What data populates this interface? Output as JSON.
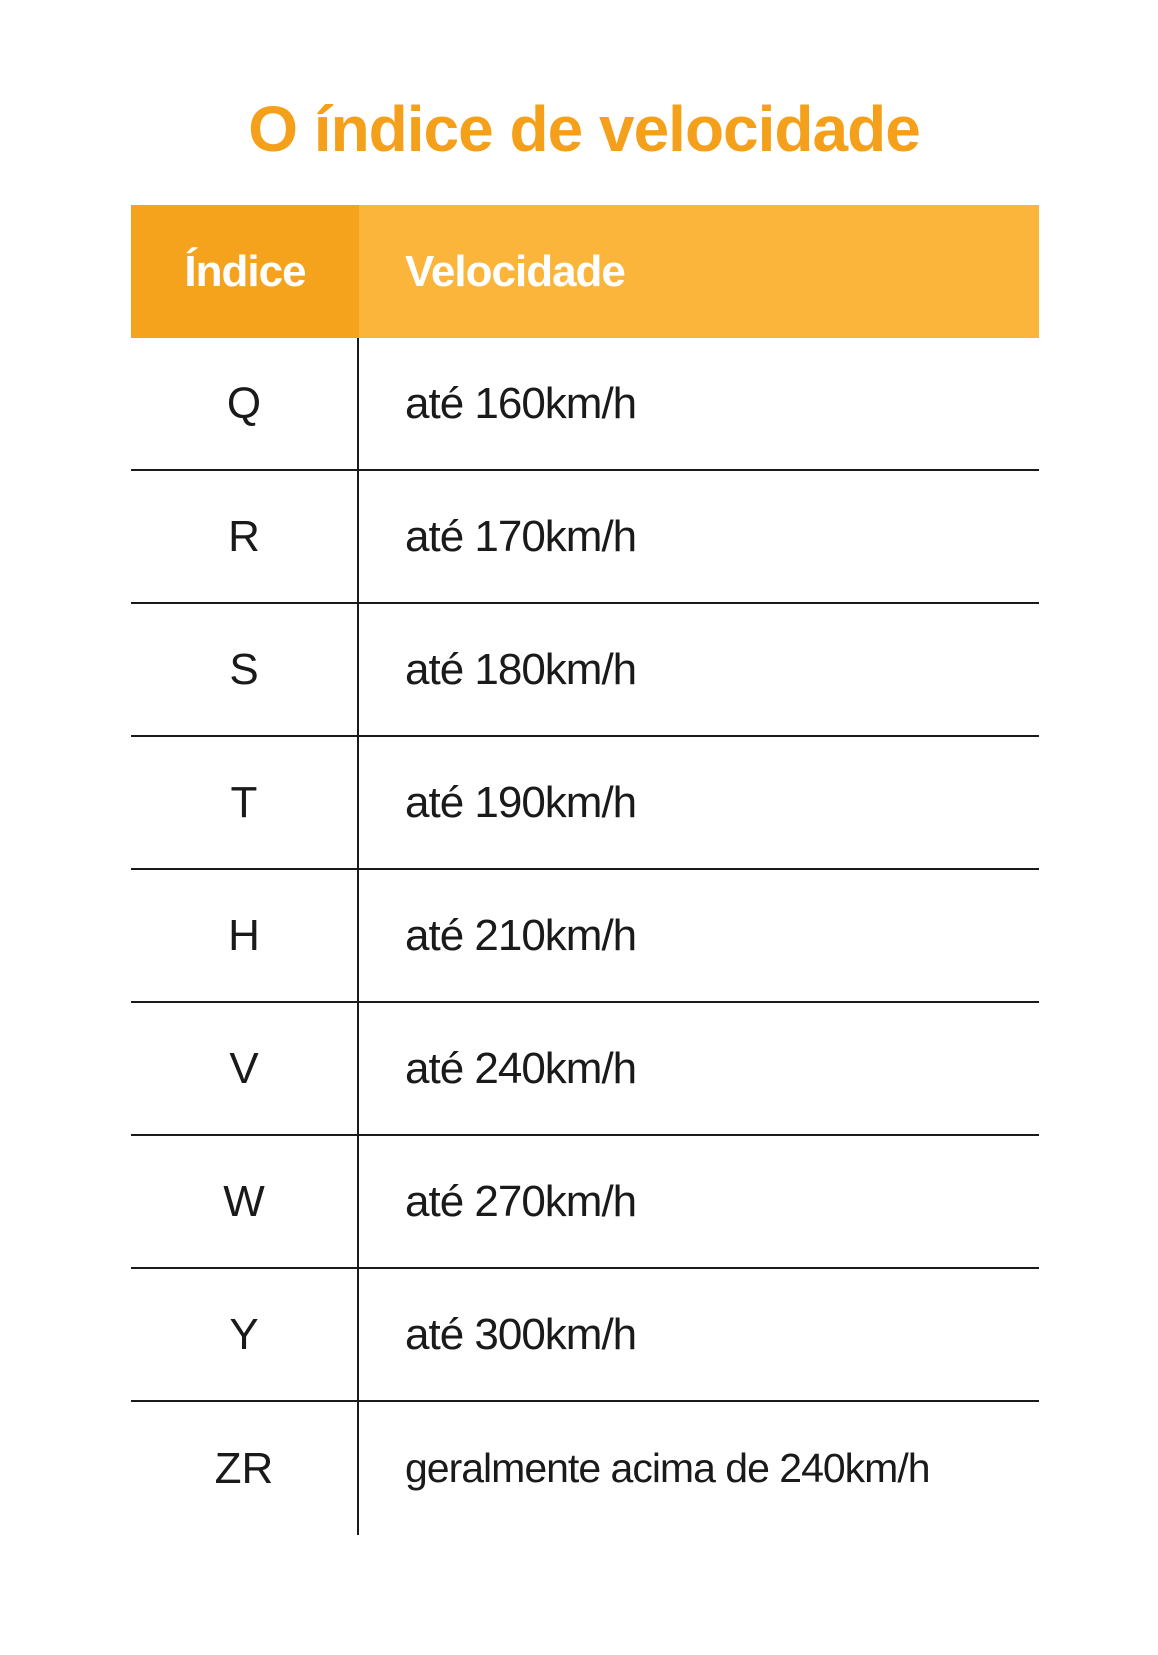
{
  "title": "O índice de velocidade",
  "colors": {
    "title": "#f5a01a",
    "header_index": "#f5a31c",
    "header_speed": "#fab53a"
  },
  "table": {
    "headers": [
      "Índice",
      "Velocidade"
    ],
    "rows": [
      {
        "index": "Q",
        "speed": "até 160km/h"
      },
      {
        "index": "R",
        "speed": "até 170km/h"
      },
      {
        "index": "S",
        "speed": "até 180km/h"
      },
      {
        "index": "T",
        "speed": "até 190km/h"
      },
      {
        "index": "H",
        "speed": "até 210km/h"
      },
      {
        "index": "V",
        "speed": "até 240km/h"
      },
      {
        "index": "W",
        "speed": "até 270km/h"
      },
      {
        "index": "Y",
        "speed": "até 300km/h"
      },
      {
        "index": "ZR",
        "speed": "geralmente acima de 240km/h"
      }
    ]
  }
}
